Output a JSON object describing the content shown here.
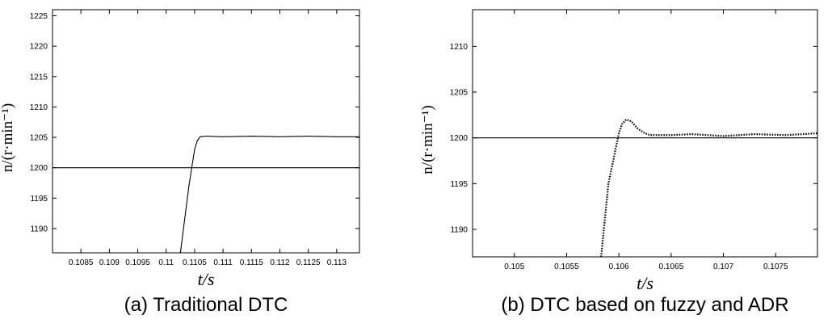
{
  "chart_data": [
    {
      "type": "line",
      "caption": "(a) Traditional DTC",
      "xlabel": "t/s",
      "ylabel": "n/(r·min⁻¹)",
      "xlim": [
        0.108,
        0.1134
      ],
      "ylim": [
        1186,
        1226
      ],
      "xticks": [
        "0.1085",
        "0.109",
        "0.1095",
        "0.11",
        "0.1105",
        "0.111",
        "0.1115",
        "0.112",
        "0.1125",
        "0.113"
      ],
      "yticks": [
        "1190",
        "1195",
        "1200",
        "1205",
        "1210",
        "1215",
        "1220",
        "1225"
      ],
      "grid": false,
      "series": [
        {
          "style": "solid",
          "x": [
            0.108,
            0.1134
          ],
          "y": [
            1200,
            1200
          ]
        },
        {
          "style": "solid",
          "x": [
            0.11025,
            0.1104,
            0.1105,
            0.11055,
            0.1106,
            0.1107,
            0.111,
            0.1115,
            0.112,
            0.1125,
            0.113,
            0.1134
          ],
          "y": [
            1186,
            1197,
            1203,
            1204.5,
            1205.1,
            1205.2,
            1205.1,
            1205.2,
            1205.1,
            1205.2,
            1205.1,
            1205.1
          ]
        }
      ]
    },
    {
      "type": "line",
      "caption": "(b) DTC based on fuzzy and ADR",
      "xlabel": "t/s",
      "ylabel": "n/(r·min⁻¹)",
      "xlim": [
        0.1046,
        0.1079
      ],
      "ylim": [
        1187,
        1214
      ],
      "xticks": [
        "0.105",
        "0.1055",
        "0.106",
        "0.1065",
        "0.107",
        "0.1075"
      ],
      "yticks": [
        "1190",
        "1195",
        "1200",
        "1205",
        "1210"
      ],
      "grid": false,
      "series": [
        {
          "style": "solid",
          "x": [
            0.1046,
            0.1079
          ],
          "y": [
            1200,
            1200
          ]
        },
        {
          "style": "dotted",
          "x": [
            0.10583,
            0.1059,
            0.106,
            0.10603,
            0.10607,
            0.10612,
            0.10618,
            0.10625,
            0.1063,
            0.1065,
            0.1067,
            0.107,
            0.1073,
            0.1076,
            0.1079
          ],
          "y": [
            1187,
            1195,
            1200.5,
            1201.5,
            1202,
            1201.8,
            1201,
            1200.5,
            1200.3,
            1200.3,
            1200.4,
            1200.2,
            1200.4,
            1200.3,
            1200.5
          ]
        }
      ]
    }
  ]
}
